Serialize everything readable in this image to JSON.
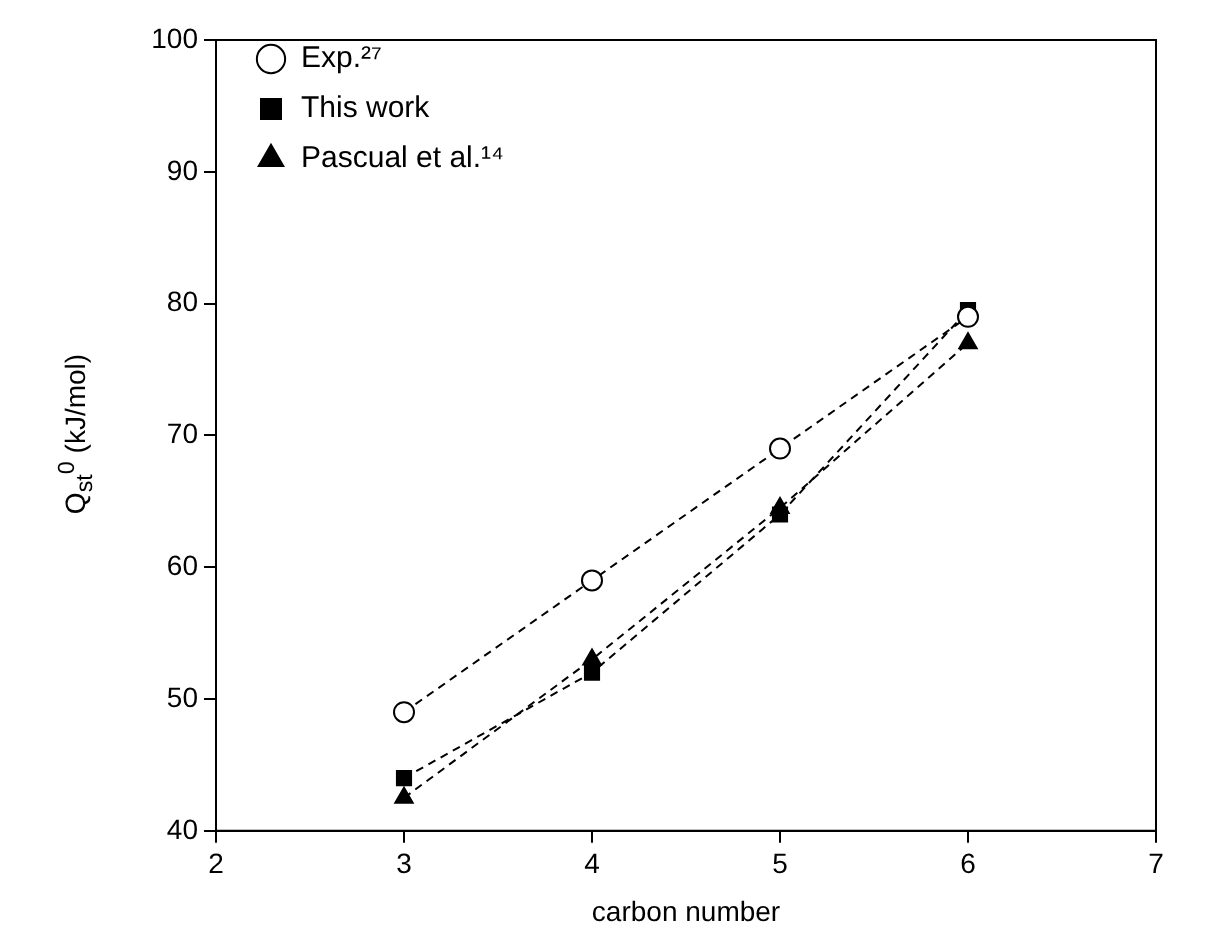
{
  "chart_data": {
    "type": "line",
    "xlabel": "carbon number",
    "ylabel": "Q$_{st}$$^{0}$ (kJ/mol)",
    "x": [
      3,
      4,
      5,
      6
    ],
    "series": [
      {
        "name": "Exp.²⁷",
        "color": "#000000",
        "marker": "circle",
        "values": [
          49,
          59,
          69,
          79
        ]
      },
      {
        "name": "This work",
        "color": "#000000",
        "marker": "square",
        "values": [
          44,
          52,
          64,
          79.5
        ]
      },
      {
        "name": "Pascual et al.¹⁴",
        "color": "#000000",
        "marker": "triangle",
        "values": [
          42.5,
          53,
          64.5,
          77
        ]
      }
    ],
    "xlim": [
      2,
      7
    ],
    "xticks": [
      2,
      3,
      4,
      5,
      6,
      7
    ],
    "ylim": [
      40,
      100
    ],
    "yticks": [
      40,
      50,
      60,
      70,
      80,
      90,
      100
    ],
    "grid": false,
    "legend": "top left",
    "line_style": "dashed"
  }
}
